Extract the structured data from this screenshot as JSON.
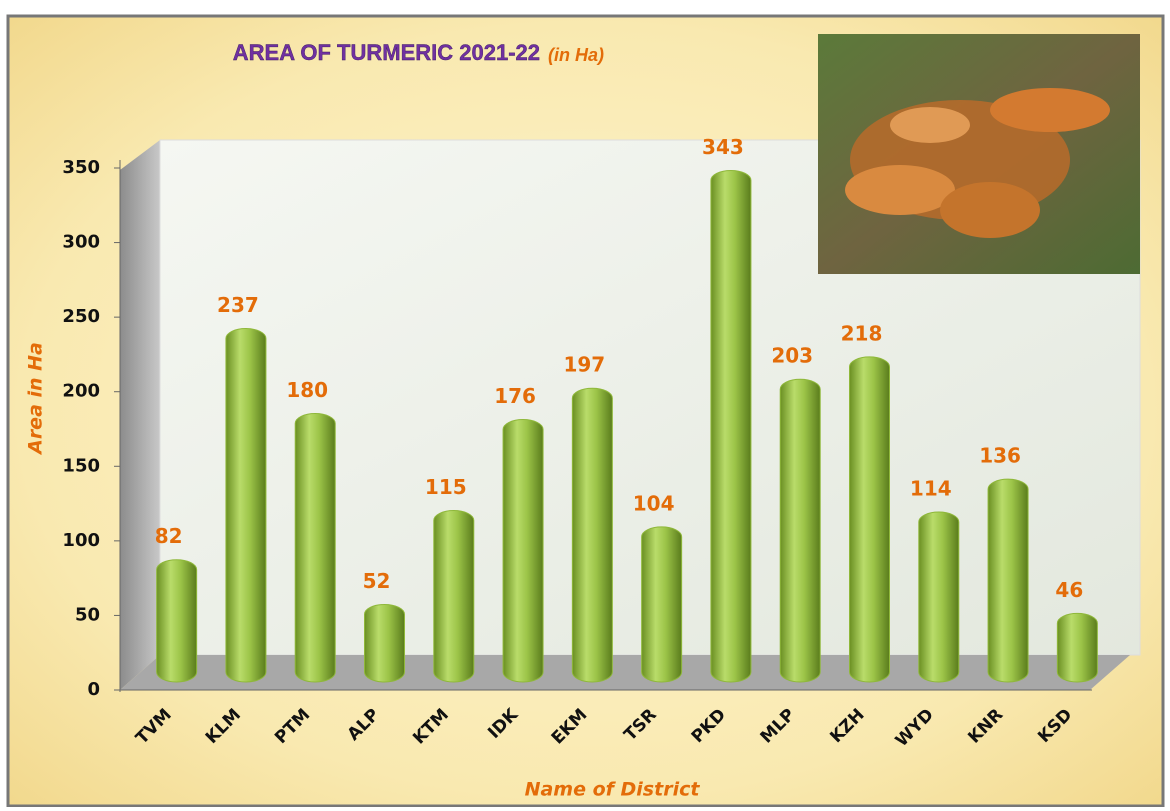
{
  "chart_data": {
    "type": "bar",
    "title": "AREA OF TURMERIC 2021-22",
    "title_unit": "(in Ha)",
    "x_label": "Name of District",
    "y_label": "Area in Ha",
    "categories": [
      "TVM",
      "KLM",
      "PTM",
      "ALP",
      "KTM",
      "IDK",
      "EKM",
      "TSR",
      "PKD",
      "MLP",
      "KZH",
      "WYD",
      "KNR",
      "KSD"
    ],
    "values": [
      82,
      237,
      180,
      52,
      115,
      176,
      197,
      104,
      343,
      203,
      218,
      114,
      136,
      46
    ],
    "color": "#8fb83a",
    "ylim": [
      0,
      350
    ],
    "yticks": [
      0,
      50,
      100,
      150,
      200,
      250,
      300,
      350
    ],
    "data_labels": true
  }
}
